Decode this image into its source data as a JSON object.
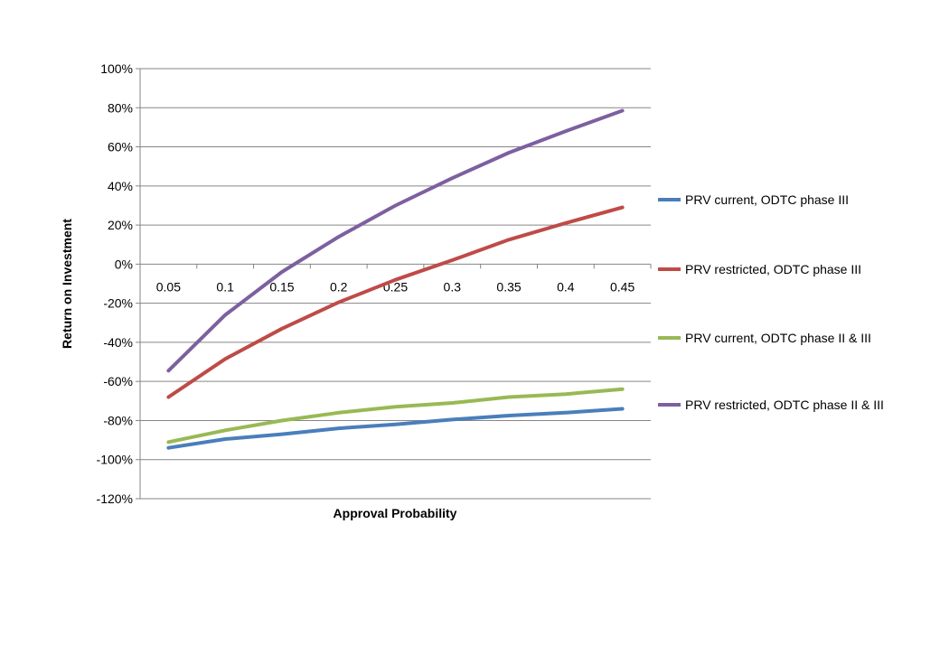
{
  "chart_data": {
    "type": "line",
    "title": "",
    "xlabel": "Approval Probability",
    "ylabel": "Return on Investment",
    "categories": [
      "0.05",
      "0.1",
      "0.15",
      "0.2",
      "0.25",
      "0.3",
      "0.35",
      "0.4",
      "0.45"
    ],
    "ylim": [
      -120,
      100
    ],
    "ytick_step": 20,
    "ytick_labels": [
      "100%",
      "80%",
      "60%",
      "40%",
      "20%",
      "0%",
      "-20%",
      "-40%",
      "-60%",
      "-80%",
      "-100%",
      "-120%"
    ],
    "grid": true,
    "legend_position": "right",
    "series": [
      {
        "name": "PRV current, ODTC phase III",
        "color": "#4a7ebb",
        "values": [
          -94,
          -89.5,
          -87,
          -84,
          -82,
          -79.5,
          -77.5,
          -76,
          -74
        ]
      },
      {
        "name": "PRV restricted, ODTC phase III",
        "color": "#be4b48",
        "values": [
          -68,
          -48.5,
          -33,
          -19.5,
          -8,
          2,
          12.5,
          21,
          29
        ]
      },
      {
        "name": "PRV current, ODTC phase II & III",
        "color": "#98b954",
        "values": [
          -91,
          -85,
          -80,
          -76,
          -73,
          -71,
          -68,
          -66.5,
          -64
        ]
      },
      {
        "name": "PRV restricted, ODTC phase II & III",
        "color": "#7d60a0",
        "values": [
          -54.5,
          -26,
          -4,
          14,
          30,
          44,
          57,
          68,
          78.5
        ]
      }
    ]
  }
}
